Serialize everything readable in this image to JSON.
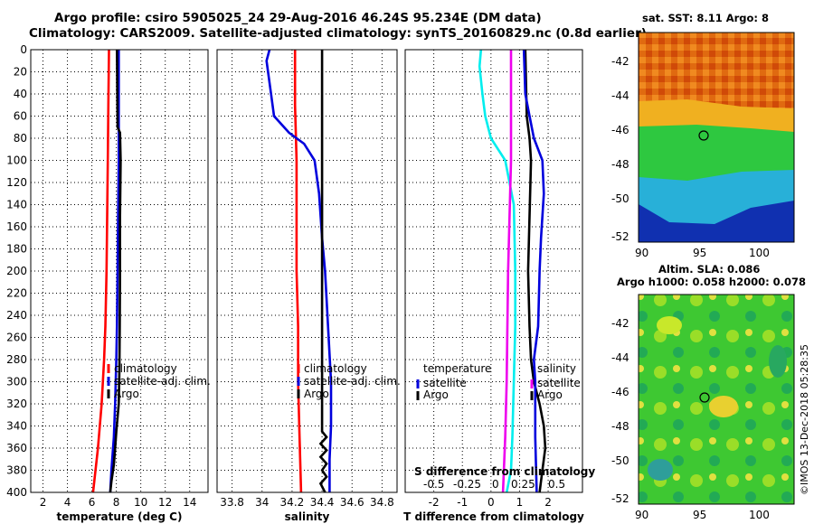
{
  "header": {
    "title_line1": "Argo profile: csiro 5905025_24 29-Aug-2016 46.24S 95.234E (DM data)",
    "title_line2": "Climatology: CARS2009. Satellite-adjusted climatology: synTS_20160829.nc (0.8d earlier)"
  },
  "colors": {
    "climatology": "#ff0000",
    "satellite": "#0000dd",
    "argo": "#000000",
    "temp_diff": "#00eeee",
    "sal_diff": "#ee00ee"
  },
  "chart_data": [
    {
      "type": "line",
      "id": "temperature",
      "xlabel": "temperature (deg C)",
      "xlim": [
        1,
        15.5
      ],
      "xticks": [
        2,
        4,
        6,
        8,
        10,
        12,
        14
      ],
      "ylim": [
        400,
        0
      ],
      "yticks": [
        0,
        20,
        40,
        60,
        80,
        100,
        120,
        140,
        160,
        180,
        200,
        220,
        240,
        260,
        280,
        300,
        320,
        340,
        360,
        380,
        400
      ],
      "legend": [
        "climatology",
        "satellite-adj. clim.",
        "Argo"
      ],
      "series": [
        {
          "name": "climatology",
          "color": "#ff0000",
          "points": [
            [
              7.4,
              0
            ],
            [
              7.35,
              50
            ],
            [
              7.3,
              100
            ],
            [
              7.25,
              150
            ],
            [
              7.2,
              200
            ],
            [
              7.1,
              250
            ],
            [
              7.0,
              280
            ],
            [
              6.8,
              320
            ],
            [
              6.5,
              360
            ],
            [
              6.3,
              380
            ],
            [
              6.1,
              400
            ]
          ]
        },
        {
          "name": "satellite-adj. clim.",
          "color": "#0000dd",
          "points": [
            [
              8.2,
              0
            ],
            [
              8.2,
              50
            ],
            [
              8.2,
              100
            ],
            [
              8.15,
              150
            ],
            [
              8.1,
              200
            ],
            [
              8.05,
              250
            ],
            [
              8.0,
              280
            ],
            [
              7.9,
              320
            ],
            [
              7.8,
              350
            ],
            [
              7.6,
              380
            ],
            [
              7.5,
              400
            ]
          ]
        },
        {
          "name": "Argo",
          "color": "#000000",
          "points": [
            [
              8.05,
              0
            ],
            [
              8.1,
              70
            ],
            [
              8.3,
              75
            ],
            [
              8.35,
              100
            ],
            [
              8.3,
              150
            ],
            [
              8.3,
              200
            ],
            [
              8.28,
              250
            ],
            [
              8.25,
              290
            ],
            [
              8.2,
              320
            ],
            [
              8.0,
              345
            ],
            [
              7.9,
              360
            ],
            [
              7.8,
              375
            ],
            [
              7.6,
              390
            ],
            [
              7.5,
              400
            ]
          ]
        }
      ]
    },
    {
      "type": "line",
      "id": "salinity",
      "xlabel": "salinity",
      "xlim": [
        33.7,
        34.9
      ],
      "xticks": [
        33.8,
        34,
        34.2,
        34.4,
        34.6,
        34.8
      ],
      "ylim": [
        400,
        0
      ],
      "legend": [
        "climatology",
        "satellite-adj. clim.",
        "Argo"
      ],
      "series": [
        {
          "name": "climatology",
          "color": "#ff0000",
          "points": [
            [
              34.22,
              0
            ],
            [
              34.22,
              50
            ],
            [
              34.23,
              100
            ],
            [
              34.23,
              150
            ],
            [
              34.23,
              200
            ],
            [
              34.24,
              250
            ],
            [
              34.24,
              300
            ],
            [
              34.25,
              350
            ],
            [
              34.26,
              400
            ]
          ]
        },
        {
          "name": "satellite-adj. clim.",
          "color": "#0000dd",
          "points": [
            [
              34.05,
              0
            ],
            [
              34.03,
              10
            ],
            [
              34.06,
              40
            ],
            [
              34.08,
              60
            ],
            [
              34.18,
              75
            ],
            [
              34.28,
              85
            ],
            [
              34.35,
              100
            ],
            [
              34.38,
              130
            ],
            [
              34.4,
              170
            ],
            [
              34.42,
              200
            ],
            [
              34.44,
              250
            ],
            [
              34.46,
              300
            ],
            [
              34.46,
              340
            ],
            [
              34.45,
              370
            ],
            [
              34.45,
              400
            ]
          ]
        },
        {
          "name": "Argo",
          "color": "#000000",
          "points": [
            [
              34.4,
              0
            ],
            [
              34.4,
              100
            ],
            [
              34.4,
              200
            ],
            [
              34.4,
              300
            ],
            [
              34.4,
              345
            ],
            [
              34.43,
              350
            ],
            [
              34.39,
              356
            ],
            [
              34.43,
              362
            ],
            [
              34.39,
              368
            ],
            [
              34.43,
              374
            ],
            [
              34.4,
              380
            ],
            [
              34.43,
              386
            ],
            [
              34.39,
              392
            ],
            [
              34.42,
              400
            ]
          ]
        }
      ]
    },
    {
      "type": "line",
      "id": "difference",
      "xlabel": "T difference from climatology",
      "xlim": [
        -3,
        3.2
      ],
      "xticks": [
        -2,
        -1,
        0,
        1,
        2
      ],
      "top_xlabel": "S difference from climatology",
      "top_xticks": [
        "-0.5",
        "-0.25",
        "0",
        "0.25",
        "0.5"
      ],
      "ylim": [
        400,
        0
      ],
      "legend_left": {
        "title": "temperature",
        "items": [
          "satellite",
          "Argo"
        ]
      },
      "legend_right": {
        "title": "salinity",
        "items": [
          "satellite",
          "Argo"
        ]
      },
      "series": [
        {
          "name": "T satellite",
          "color": "#00eeee",
          "points": [
            [
              -0.35,
              0
            ],
            [
              -0.4,
              15
            ],
            [
              -0.3,
              40
            ],
            [
              -0.2,
              60
            ],
            [
              0.0,
              80
            ],
            [
              0.5,
              100
            ],
            [
              0.8,
              140
            ],
            [
              0.85,
              200
            ],
            [
              0.85,
              250
            ],
            [
              0.8,
              300
            ],
            [
              0.75,
              350
            ],
            [
              0.7,
              380
            ],
            [
              0.55,
              400
            ]
          ]
        },
        {
          "name": "S satellite",
          "color": "#ee00ee",
          "points": [
            [
              0.7,
              0
            ],
            [
              0.7,
              100
            ],
            [
              0.6,
              200
            ],
            [
              0.55,
              300
            ],
            [
              0.5,
              350
            ],
            [
              0.45,
              380
            ],
            [
              0.42,
              400
            ]
          ]
        },
        {
          "name": "T Argo",
          "color": "#000000",
          "points": [
            [
              1.2,
              0
            ],
            [
              1.25,
              60
            ],
            [
              1.35,
              80
            ],
            [
              1.4,
              100
            ],
            [
              1.35,
              150
            ],
            [
              1.3,
              200
            ],
            [
              1.35,
              250
            ],
            [
              1.4,
              280
            ],
            [
              1.5,
              300
            ],
            [
              1.7,
              320
            ],
            [
              1.85,
              340
            ],
            [
              1.9,
              360
            ],
            [
              1.8,
              380
            ],
            [
              1.7,
              400
            ]
          ]
        },
        {
          "name": "S Argo / satellite",
          "color": "#0000dd",
          "points": [
            [
              1.15,
              0
            ],
            [
              1.2,
              40
            ],
            [
              1.35,
              60
            ],
            [
              1.5,
              80
            ],
            [
              1.8,
              100
            ],
            [
              1.85,
              130
            ],
            [
              1.75,
              170
            ],
            [
              1.7,
              200
            ],
            [
              1.65,
              250
            ],
            [
              1.5,
              280
            ],
            [
              1.55,
              300
            ],
            [
              1.55,
              350
            ],
            [
              1.6,
              400
            ]
          ]
        }
      ]
    }
  ],
  "maps": {
    "sst": {
      "title": "sat. SST: 8.11 Argo: 8",
      "yticks": [
        "-42",
        "-44",
        "-46",
        "-48",
        "-50",
        "-52"
      ],
      "xticks": [
        "90",
        "95",
        "100"
      ]
    },
    "sla": {
      "title_line1": "Altim. SLA: 0.086",
      "title_line2": "Argo h1000: 0.058 h2000: 0.078",
      "yticks": [
        "-42",
        "-44",
        "-46",
        "-48",
        "-50",
        "-52"
      ],
      "xticks": [
        "90",
        "95",
        "100"
      ]
    }
  },
  "footer": {
    "stamp": "©IMOS 13-Dec-2018 05:28:35"
  }
}
